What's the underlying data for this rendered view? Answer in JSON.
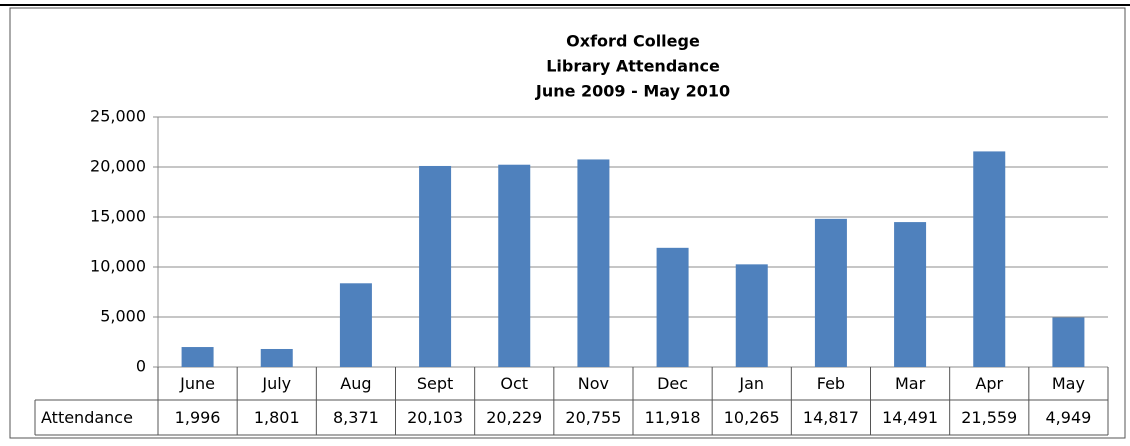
{
  "chart_data": {
    "type": "bar",
    "title": [
      "Oxford College",
      "Library Attendance",
      "June 2009 - May 2010"
    ],
    "categories": [
      "June",
      "July",
      "Aug",
      "Sept",
      "Oct",
      "Nov",
      "Dec",
      "Jan",
      "Feb",
      "Mar",
      "Apr",
      "May"
    ],
    "series": [
      {
        "name": "Attendance",
        "color": "#4f81bd",
        "values": [
          1996,
          1801,
          8371,
          20103,
          20229,
          20755,
          11918,
          10265,
          14817,
          14491,
          21559,
          4949
        ],
        "value_labels": [
          "1,996",
          "1,801",
          "8,371",
          "20,103",
          "20,229",
          "20,755",
          "11,918",
          "10,265",
          "14,817",
          "14,491",
          "21,559",
          "4,949"
        ]
      }
    ],
    "ylim": [
      0,
      25000
    ],
    "yticks": [
      0,
      {
        "value": 5000,
        "label": "5,000"
      },
      {
        "value": 10000,
        "label": "10,000"
      },
      {
        "value": 15000,
        "label": "15,000"
      },
      {
        "value": 20000,
        "label": "20,000"
      },
      {
        "value": 25000,
        "label": "25,000"
      }
    ],
    "grid": true
  }
}
